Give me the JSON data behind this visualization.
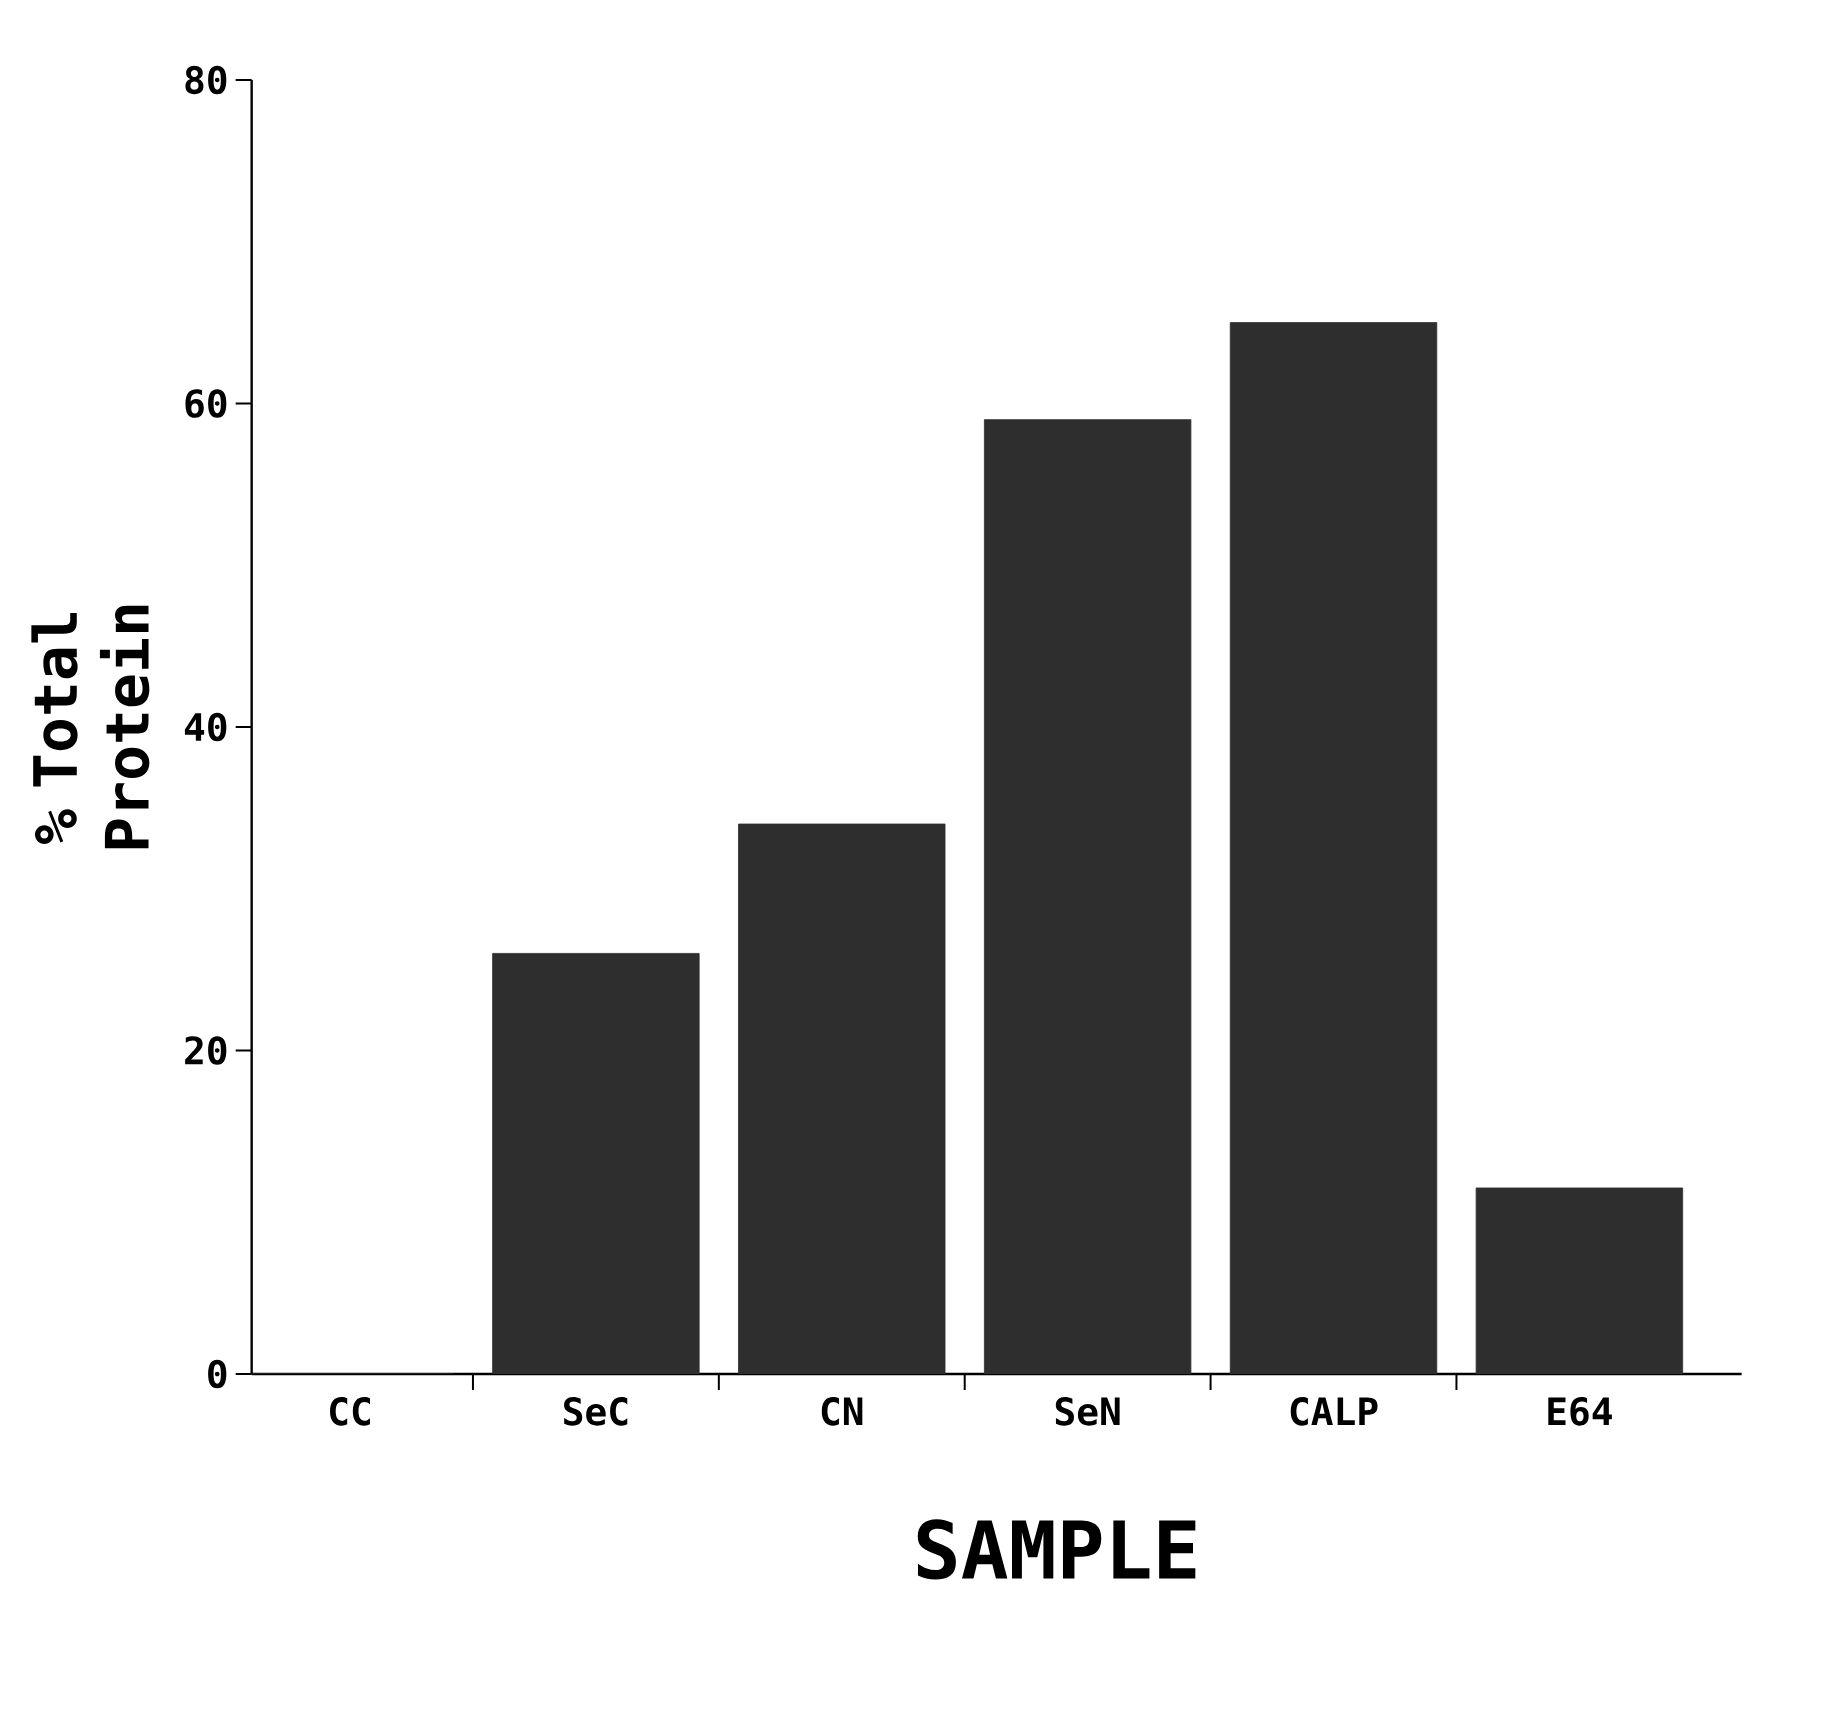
{
  "chart_data": {
    "type": "bar",
    "ylabel": "% Total Protein",
    "xlabel": "SAMPLE",
    "categories": [
      "CC",
      "SeC",
      "CN",
      "SeN",
      "CALP",
      "E64"
    ],
    "values": [
      0,
      26,
      34,
      59,
      65,
      11.5
    ],
    "color": "#2e2e2e",
    "ylim": [
      0,
      80
    ],
    "yticks": [
      0,
      20,
      40,
      60,
      80
    ],
    "grid": false
  }
}
